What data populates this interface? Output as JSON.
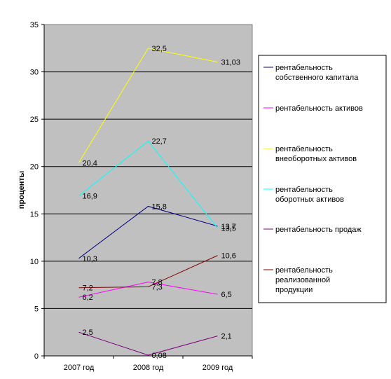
{
  "chart_data": {
    "type": "line",
    "categories": [
      "2007 год",
      "2008 год",
      "2009 год"
    ],
    "ylabel": "проценты",
    "ylim": [
      0,
      35
    ],
    "yticks": [
      "0",
      "5",
      "10",
      "15",
      "20",
      "25",
      "30",
      "35"
    ],
    "grid": true,
    "legend_position": "right",
    "plot_background": "#c0c0c0",
    "series": [
      {
        "name": "рентабельность собственного капитала",
        "values": [
          10.3,
          15.8,
          13.7
        ],
        "labels": [
          "10,3",
          "15,8",
          "13,7"
        ],
        "color": "#000080"
      },
      {
        "name": "рентабельность активов",
        "values": [
          6.2,
          7.8,
          6.5
        ],
        "labels": [
          "6,2",
          "7,8",
          "6,5"
        ],
        "color": "#ff00ff"
      },
      {
        "name": "рентабельность внеоборотных активов",
        "values": [
          20.4,
          32.5,
          31.03
        ],
        "labels": [
          "20,4",
          "32,5",
          "31,03"
        ],
        "color": "#ffff00"
      },
      {
        "name": "рентабельность оборотных активов",
        "values": [
          16.9,
          22.7,
          13.5
        ],
        "labels": [
          "16,9",
          "22,7",
          "13,5"
        ],
        "color": "#00ffff"
      },
      {
        "name": "рентабельность продаж",
        "values": [
          2.5,
          0.08,
          2.1
        ],
        "labels": [
          "2,5",
          "0,08",
          "2,1"
        ],
        "color": "#800080"
      },
      {
        "name": "рентабельность реализованной продукции",
        "values": [
          7.2,
          7.3,
          10.6
        ],
        "labels": [
          "7,2",
          "7,3",
          "10,6"
        ],
        "color": "#800000"
      }
    ]
  }
}
